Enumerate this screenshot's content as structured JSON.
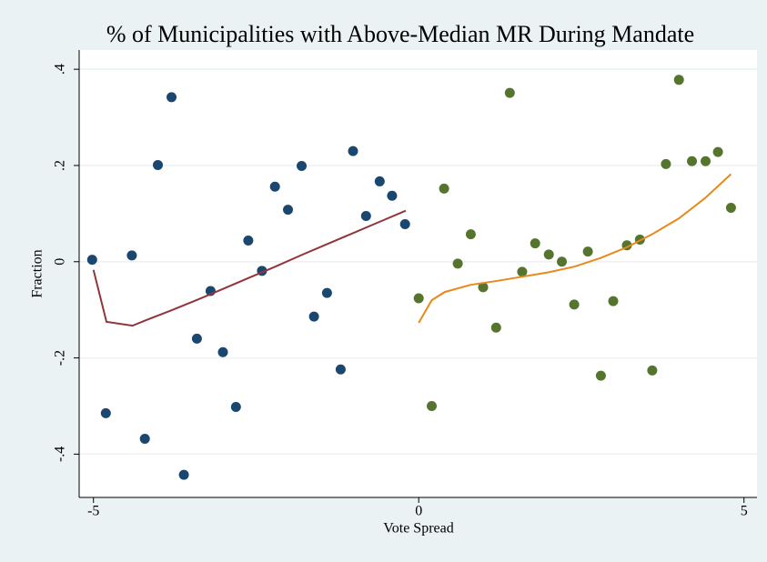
{
  "chart_data": {
    "type": "scatter",
    "title": "% of Municipalities with Above-Median MR During Mandate",
    "x_label": "Vote Spread",
    "y_label": "Fraction",
    "xlim": [
      -5.22,
      5.2
    ],
    "xticks": [
      -5,
      0,
      5
    ],
    "ylim": [
      -0.49,
      0.44
    ],
    "yticks": [
      {
        "value": -0.4,
        "label": "-.4"
      },
      {
        "value": -0.2,
        "label": "-.2"
      },
      {
        "value": 0,
        "label": "0"
      },
      {
        "value": 0.2,
        "label": ".2"
      },
      {
        "value": 0.4,
        "label": ".4"
      }
    ],
    "grid": true,
    "series": [
      {
        "type": "scatter",
        "color": "#1a476f",
        "x": [
          -5.02,
          -4.81,
          -4.41,
          -4.21,
          -4.01,
          -3.8,
          -3.61,
          -3.41,
          -3.2,
          -3.01,
          -2.81,
          -2.62,
          -2.41,
          -2.21,
          -2.01,
          -1.8,
          -1.61,
          -1.41,
          -1.2,
          -1.01,
          -0.81,
          -0.6,
          -0.41,
          -0.21
        ],
        "values": [
          0.004,
          -0.315,
          0.013,
          -0.368,
          0.201,
          0.342,
          -0.443,
          -0.16,
          -0.061,
          -0.188,
          -0.302,
          0.044,
          -0.019,
          0.156,
          0.108,
          0.199,
          -0.114,
          -0.065,
          -0.224,
          0.23,
          0.095,
          0.167,
          0.137,
          0.078
        ]
      },
      {
        "type": "scatter",
        "color": "#55752f",
        "x": [
          0,
          0.2,
          0.39,
          0.6,
          0.8,
          0.99,
          1.19,
          1.4,
          1.59,
          1.79,
          2.0,
          2.2,
          2.39,
          2.6,
          2.8,
          2.99,
          3.2,
          3.4,
          3.59,
          3.8,
          4.0,
          4.2,
          4.41,
          4.6,
          4.8
        ],
        "values": [
          -0.076,
          -0.3,
          0.152,
          -0.004,
          0.057,
          -0.053,
          -0.137,
          0.351,
          -0.021,
          0.038,
          0.015,
          0.0,
          -0.089,
          0.021,
          -0.237,
          -0.082,
          0.034,
          0.046,
          -0.226,
          0.203,
          0.378,
          0.209,
          0.209,
          0.228,
          0.112
        ]
      },
      {
        "type": "line",
        "color": "#90353b",
        "x": [
          -5,
          -4.8,
          -4.4,
          -4.2,
          -3.8,
          -3.4,
          -3,
          -2.6,
          -2.2,
          -1.8,
          -1.4,
          -1,
          -0.6,
          -0.2
        ],
        "values": [
          -0.017,
          -0.125,
          -0.133,
          -0.122,
          -0.101,
          -0.079,
          -0.056,
          -0.033,
          -0.01,
          0.014,
          0.037,
          0.06,
          0.083,
          0.106
        ]
      },
      {
        "type": "line",
        "color": "#e8891a",
        "x": [
          0,
          0.2,
          0.4,
          0.8,
          1.2,
          1.6,
          2.0,
          2.4,
          2.8,
          3.2,
          3.6,
          4.0,
          4.4,
          4.8
        ],
        "values": [
          -0.127,
          -0.08,
          -0.063,
          -0.048,
          -0.04,
          -0.031,
          -0.022,
          -0.01,
          0.008,
          0.03,
          0.058,
          0.09,
          0.132,
          0.182
        ]
      }
    ]
  }
}
